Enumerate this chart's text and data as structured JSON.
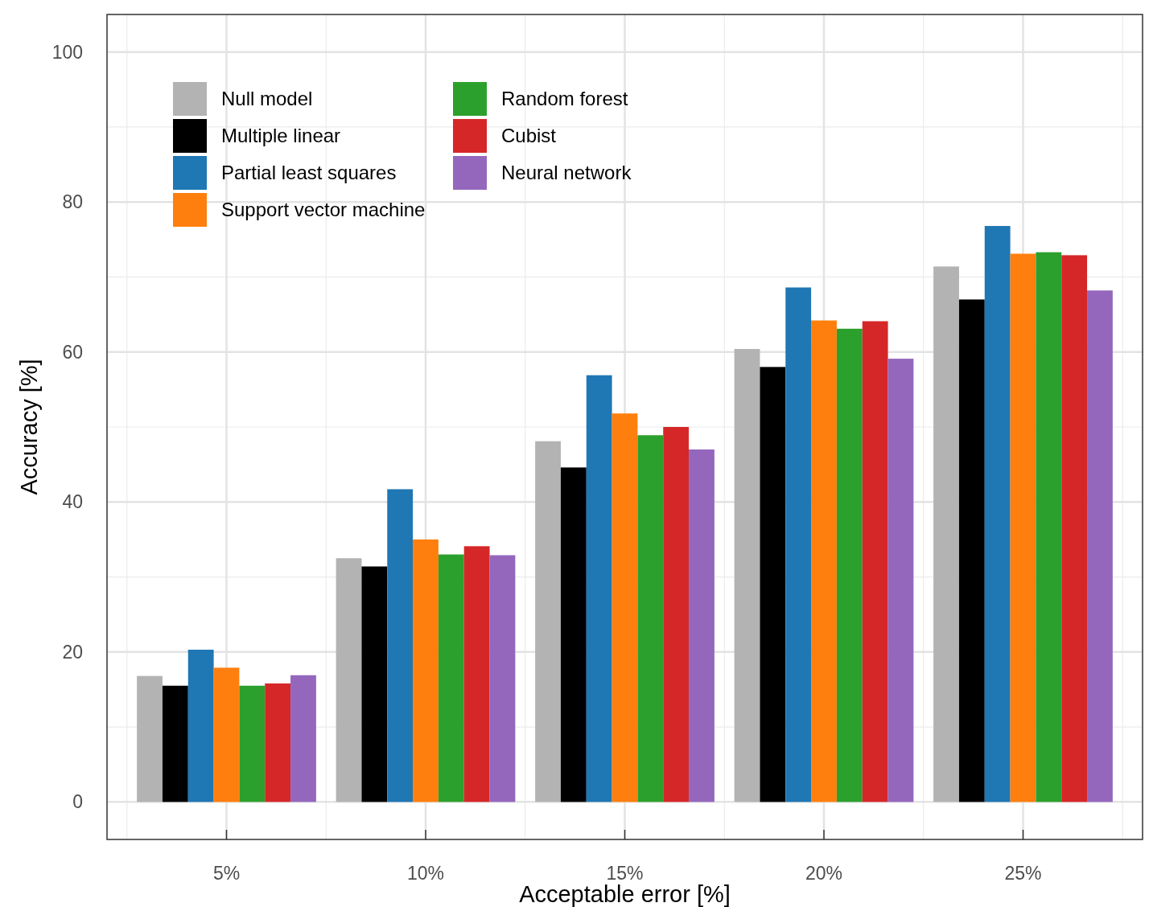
{
  "chart_data": {
    "type": "bar",
    "xlabel": "Acceptable error [%]",
    "ylabel": "Accuracy [%]",
    "categories": [
      "5%",
      "10%",
      "15%",
      "20%",
      "25%"
    ],
    "series": [
      {
        "name": "Null model",
        "color": "#b3b3b3",
        "values": [
          16.8,
          32.5,
          48.1,
          60.4,
          71.4
        ]
      },
      {
        "name": "Multiple linear",
        "color": "#000000",
        "values": [
          15.5,
          31.4,
          44.6,
          58.0,
          67.0
        ]
      },
      {
        "name": "Partial least squares",
        "color": "#1f77b4",
        "values": [
          20.3,
          41.7,
          56.9,
          68.6,
          76.8
        ]
      },
      {
        "name": "Support vector machine",
        "color": "#ff7f0e",
        "values": [
          17.9,
          35.0,
          51.8,
          64.2,
          73.1
        ]
      },
      {
        "name": "Random forest",
        "color": "#2ca02c",
        "values": [
          15.5,
          33.0,
          48.9,
          63.1,
          73.3
        ]
      },
      {
        "name": "Cubist",
        "color": "#d62728",
        "values": [
          15.8,
          34.1,
          50.0,
          64.1,
          72.9
        ]
      },
      {
        "name": "Neural network",
        "color": "#9467bd",
        "values": [
          16.9,
          32.9,
          47.0,
          59.1,
          68.2
        ]
      }
    ],
    "ylim": [
      -5,
      105
    ],
    "yticks": [
      0,
      20,
      40,
      60,
      80,
      100
    ],
    "grid": true,
    "legend": "top left"
  }
}
